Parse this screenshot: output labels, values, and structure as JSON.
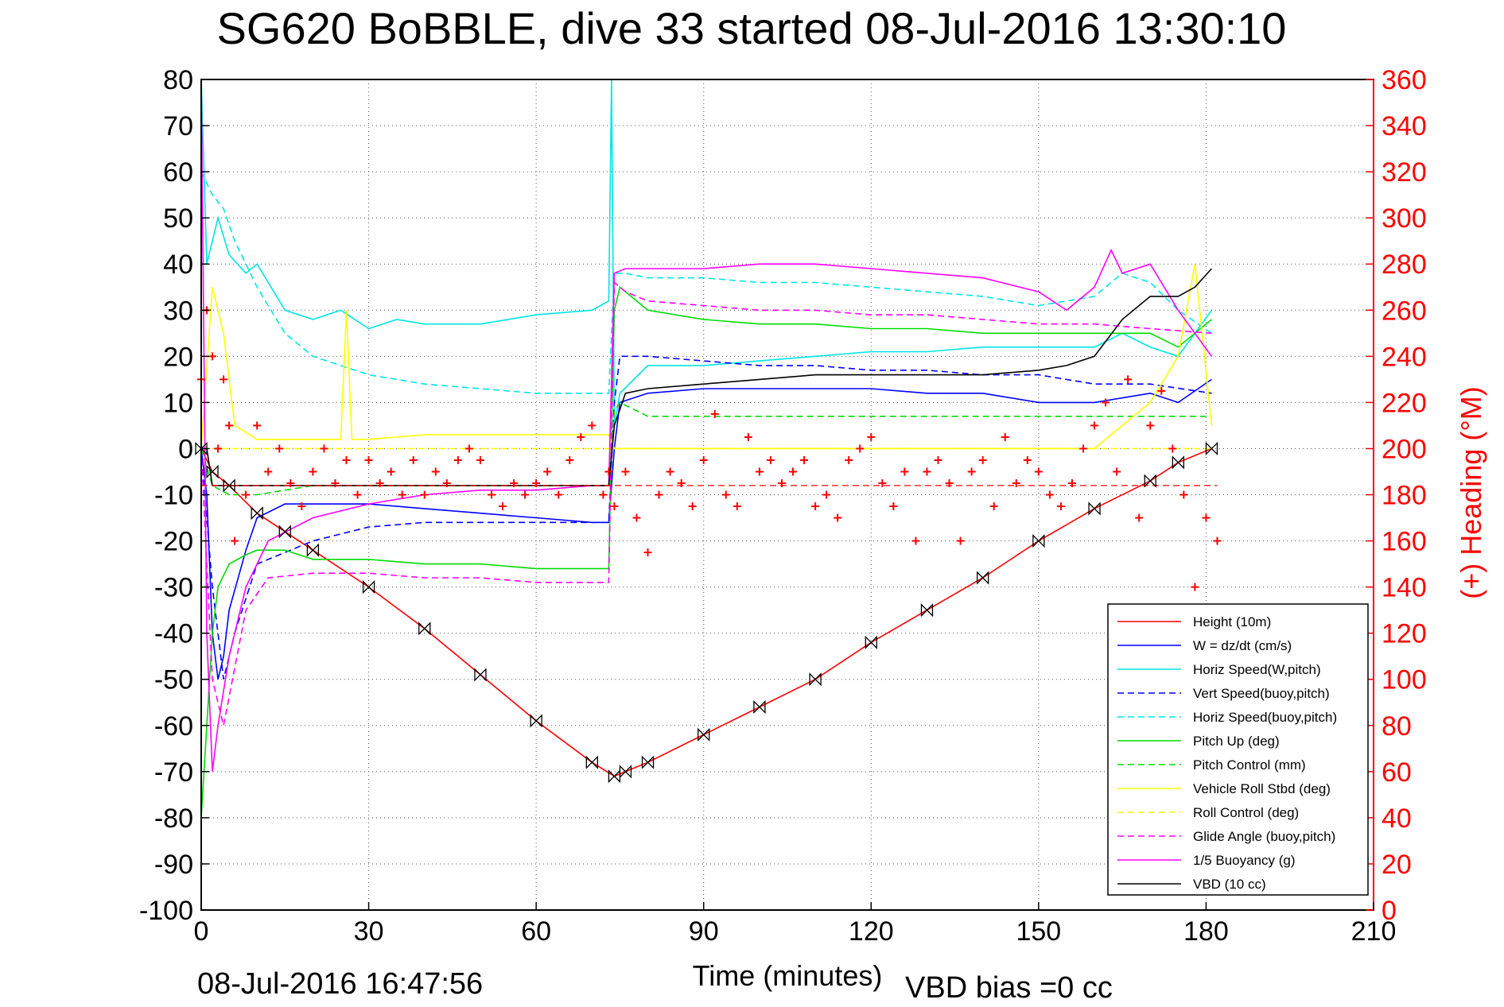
{
  "chart_data": {
    "type": "line",
    "title": "SG620 BoBBLE, dive 33 started 08-Jul-2016 13:30:10",
    "xlabel": "Time (minutes)",
    "ylabel": "",
    "y2label": "(+) Heading (°M)",
    "footer_left": "08-Jul-2016 16:47:56",
    "footer_right": "VBD bias =0 cc",
    "xlim": [
      0,
      210
    ],
    "ylim": [
      -100,
      80
    ],
    "y2lim": [
      0,
      360
    ],
    "xticks": [
      0,
      30,
      60,
      90,
      120,
      150,
      180,
      210
    ],
    "yticks": [
      80,
      70,
      60,
      50,
      40,
      30,
      20,
      10,
      0,
      -10,
      -20,
      -30,
      -40,
      -50,
      -60,
      -70,
      -80,
      -90,
      -100
    ],
    "y2ticks": [
      360,
      340,
      320,
      300,
      280,
      260,
      240,
      220,
      200,
      180,
      160,
      140,
      120,
      100,
      80,
      60,
      40,
      20,
      0
    ],
    "grid": true,
    "legend_position": "bottom-right",
    "series": [
      {
        "name": "Height (10m)",
        "color": "#ff0000",
        "style": "solid",
        "x": [
          0,
          2,
          5,
          10,
          15,
          20,
          30,
          40,
          50,
          60,
          70,
          74,
          76,
          80,
          90,
          100,
          110,
          120,
          130,
          140,
          150,
          160,
          170,
          175,
          181
        ],
        "y": [
          0,
          -5,
          -8,
          -14,
          -18,
          -22,
          -30,
          -39,
          -49,
          -59,
          -68,
          -71,
          -70,
          -68,
          -62,
          -56,
          -50,
          -42,
          -35,
          -28,
          -20,
          -13,
          -7,
          -3,
          0
        ]
      },
      {
        "name": "W = dz/dt (cm/s)",
        "color": "#0000ff",
        "style": "solid",
        "x": [
          0,
          1,
          2,
          3,
          4,
          5,
          8,
          10,
          15,
          20,
          30,
          40,
          50,
          60,
          70,
          73,
          74,
          75,
          80,
          90,
          100,
          110,
          120,
          130,
          140,
          150,
          160,
          170,
          175,
          181
        ],
        "y": [
          0,
          -10,
          -40,
          -50,
          -45,
          -35,
          -22,
          -15,
          -12,
          -12,
          -12,
          -13,
          -14,
          -15,
          -16,
          -16,
          0,
          10,
          12,
          13,
          13,
          13,
          13,
          12,
          12,
          10,
          10,
          12,
          10,
          15
        ]
      },
      {
        "name": "Horiz Speed(W,pitch)",
        "color": "#00e5e5",
        "style": "solid",
        "x": [
          0,
          1,
          3,
          5,
          8,
          10,
          15,
          20,
          25,
          30,
          35,
          40,
          50,
          60,
          70,
          73,
          73.5,
          74,
          75,
          80,
          90,
          100,
          110,
          120,
          130,
          140,
          150,
          160,
          165,
          170,
          175,
          181
        ],
        "y": [
          80,
          40,
          50,
          42,
          38,
          40,
          30,
          28,
          30,
          26,
          28,
          27,
          27,
          29,
          30,
          32,
          80,
          5,
          12,
          18,
          18,
          19,
          20,
          21,
          21,
          22,
          22,
          22,
          25,
          22,
          20,
          30
        ]
      },
      {
        "name": "Vert Speed(buoy,pitch)",
        "color": "#0000ff",
        "style": "dashed",
        "x": [
          0,
          2,
          4,
          6,
          10,
          20,
          30,
          40,
          50,
          60,
          70,
          73,
          74,
          75,
          80,
          90,
          100,
          110,
          120,
          130,
          140,
          150,
          160,
          170,
          181
        ],
        "y": [
          0,
          -30,
          -50,
          -40,
          -25,
          -20,
          -17,
          -16,
          -16,
          -16,
          -16,
          -16,
          10,
          20,
          20,
          19,
          18,
          18,
          17,
          17,
          16,
          16,
          14,
          14,
          12
        ]
      },
      {
        "name": "Horiz Speed(buoy,pitch)",
        "color": "#00e5e5",
        "style": "dashed",
        "x": [
          0,
          2,
          4,
          6,
          10,
          15,
          20,
          30,
          40,
          50,
          60,
          70,
          73,
          74,
          76,
          80,
          90,
          100,
          110,
          120,
          130,
          140,
          150,
          160,
          165,
          170,
          175,
          181
        ],
        "y": [
          60,
          55,
          52,
          45,
          35,
          25,
          20,
          16,
          14,
          13,
          12,
          12,
          12,
          38,
          38,
          37,
          37,
          36,
          36,
          35,
          34,
          33,
          31,
          33,
          38,
          36,
          30,
          25
        ]
      },
      {
        "name": "Pitch Up (deg)",
        "color": "#00dd00",
        "style": "solid",
        "x": [
          0,
          1,
          2,
          3,
          5,
          8,
          10,
          15,
          20,
          30,
          40,
          50,
          60,
          70,
          73,
          74,
          75,
          80,
          90,
          100,
          110,
          120,
          130,
          140,
          150,
          160,
          170,
          175,
          181
        ],
        "y": [
          -80,
          -60,
          -40,
          -30,
          -25,
          -23,
          -22,
          -22,
          -24,
          -24,
          -25,
          -25,
          -26,
          -26,
          -26,
          30,
          35,
          30,
          28,
          27,
          27,
          26,
          26,
          25,
          25,
          25,
          25,
          22,
          28
        ]
      },
      {
        "name": "Pitch Control (mm)",
        "color": "#00dd00",
        "style": "dashed",
        "x": [
          0,
          2,
          5,
          10,
          20,
          30,
          40,
          50,
          60,
          70,
          73,
          74,
          75,
          80,
          90,
          100,
          110,
          120,
          130,
          140,
          150,
          160,
          170,
          181
        ],
        "y": [
          0,
          -8,
          -10,
          -10,
          -8,
          -8,
          -8,
          -8,
          -8,
          -8,
          -8,
          8,
          10,
          7,
          7,
          7,
          7,
          7,
          7,
          7,
          7,
          7,
          7,
          7
        ]
      },
      {
        "name": "Vehicle Roll Stbd (deg)",
        "color": "#ffff00",
        "style": "solid",
        "x": [
          0,
          2,
          4,
          6,
          10,
          15,
          20,
          25,
          26,
          27,
          30,
          40,
          50,
          60,
          70,
          73,
          74,
          80,
          90,
          100,
          110,
          120,
          130,
          140,
          150,
          160,
          165,
          170,
          175,
          178,
          181
        ],
        "y": [
          0,
          35,
          25,
          5,
          2,
          2,
          2,
          2,
          30,
          2,
          2,
          3,
          3,
          3,
          3,
          3,
          0,
          0,
          0,
          0,
          0,
          0,
          0,
          0,
          0,
          0,
          5,
          10,
          20,
          40,
          5
        ]
      },
      {
        "name": "Roll Control (deg)",
        "color": "#ffff00",
        "style": "dashed",
        "x": [
          0,
          5,
          10,
          20,
          30,
          40,
          50,
          60,
          70,
          74,
          80,
          90,
          100,
          110,
          120,
          130,
          140,
          150,
          160,
          170,
          181
        ],
        "y": [
          0,
          0,
          0,
          0,
          0,
          0,
          0,
          0,
          0,
          0,
          0,
          0,
          0,
          0,
          0,
          0,
          0,
          0,
          0,
          0,
          0
        ]
      },
      {
        "name": "Glide Angle (buoy,pitch)",
        "color": "#ff00ff",
        "style": "dashed",
        "x": [
          0,
          2,
          4,
          8,
          12,
          20,
          30,
          40,
          50,
          60,
          70,
          73,
          74,
          76,
          80,
          90,
          100,
          110,
          120,
          130,
          140,
          150,
          160,
          170,
          181
        ],
        "y": [
          0,
          -50,
          -60,
          -35,
          -28,
          -27,
          -27,
          -28,
          -28,
          -29,
          -29,
          -29,
          36,
          34,
          32,
          31,
          30,
          30,
          29,
          29,
          28,
          27,
          27,
          26,
          25
        ]
      },
      {
        "name": "1/5 Buoyancy (g)",
        "color": "#ff00ff",
        "style": "solid",
        "x": [
          0,
          1,
          2,
          3,
          5,
          8,
          12,
          20,
          30,
          40,
          50,
          60,
          70,
          73,
          74,
          76,
          80,
          90,
          100,
          110,
          120,
          130,
          140,
          150,
          155,
          160,
          163,
          165,
          170,
          175,
          181
        ],
        "y": [
          80,
          -40,
          -70,
          -60,
          -45,
          -30,
          -20,
          -15,
          -12,
          -10,
          -9,
          -9,
          -8,
          -8,
          38,
          39,
          39,
          39,
          40,
          40,
          39,
          38,
          37,
          34,
          30,
          35,
          43,
          38,
          40,
          30,
          20
        ]
      },
      {
        "name": "VBD (10 cc)",
        "color": "#000000",
        "style": "solid",
        "x": [
          0,
          1,
          2,
          10,
          30,
          50,
          60,
          70,
          73,
          74,
          76,
          80,
          90,
          100,
          110,
          120,
          130,
          140,
          150,
          155,
          160,
          165,
          170,
          175,
          178,
          181
        ],
        "y": [
          0,
          0,
          -8,
          -8,
          -8,
          -8,
          -8,
          -8,
          -8,
          5,
          12,
          13,
          14,
          15,
          16,
          16,
          16,
          16,
          17,
          18,
          20,
          28,
          33,
          33,
          35,
          39
        ]
      }
    ],
    "heading": {
      "name": "Heading",
      "color": "#ff0000",
      "axis": "right",
      "mean": 184,
      "x": [
        0,
        1,
        2,
        3,
        4,
        5,
        6,
        8,
        10,
        12,
        14,
        16,
        18,
        20,
        22,
        24,
        26,
        28,
        30,
        32,
        34,
        36,
        38,
        40,
        42,
        44,
        46,
        48,
        50,
        52,
        54,
        56,
        58,
        60,
        62,
        64,
        66,
        68,
        70,
        72,
        73,
        74,
        76,
        78,
        80,
        82,
        84,
        86,
        88,
        90,
        92,
        94,
        96,
        98,
        100,
        102,
        104,
        106,
        108,
        110,
        112,
        114,
        116,
        118,
        120,
        122,
        124,
        126,
        128,
        130,
        132,
        134,
        136,
        138,
        140,
        142,
        144,
        146,
        148,
        150,
        152,
        154,
        156,
        158,
        160,
        162,
        164,
        166,
        168,
        170,
        172,
        174,
        176,
        178,
        180,
        182
      ],
      "y": [
        230,
        260,
        240,
        200,
        230,
        210,
        160,
        180,
        210,
        190,
        200,
        185,
        175,
        190,
        200,
        185,
        195,
        180,
        195,
        185,
        190,
        180,
        195,
        180,
        190,
        185,
        195,
        200,
        195,
        180,
        175,
        185,
        180,
        185,
        190,
        180,
        195,
        205,
        210,
        180,
        190,
        175,
        190,
        170,
        155,
        180,
        190,
        185,
        175,
        195,
        215,
        180,
        175,
        205,
        190,
        195,
        185,
        190,
        195,
        175,
        180,
        170,
        195,
        200,
        205,
        185,
        175,
        190,
        160,
        190,
        195,
        185,
        160,
        190,
        195,
        175,
        205,
        185,
        195,
        190,
        180,
        175,
        185,
        200,
        210,
        220,
        190,
        230,
        170,
        210,
        225,
        200,
        180,
        140,
        170,
        160
      ]
    }
  }
}
